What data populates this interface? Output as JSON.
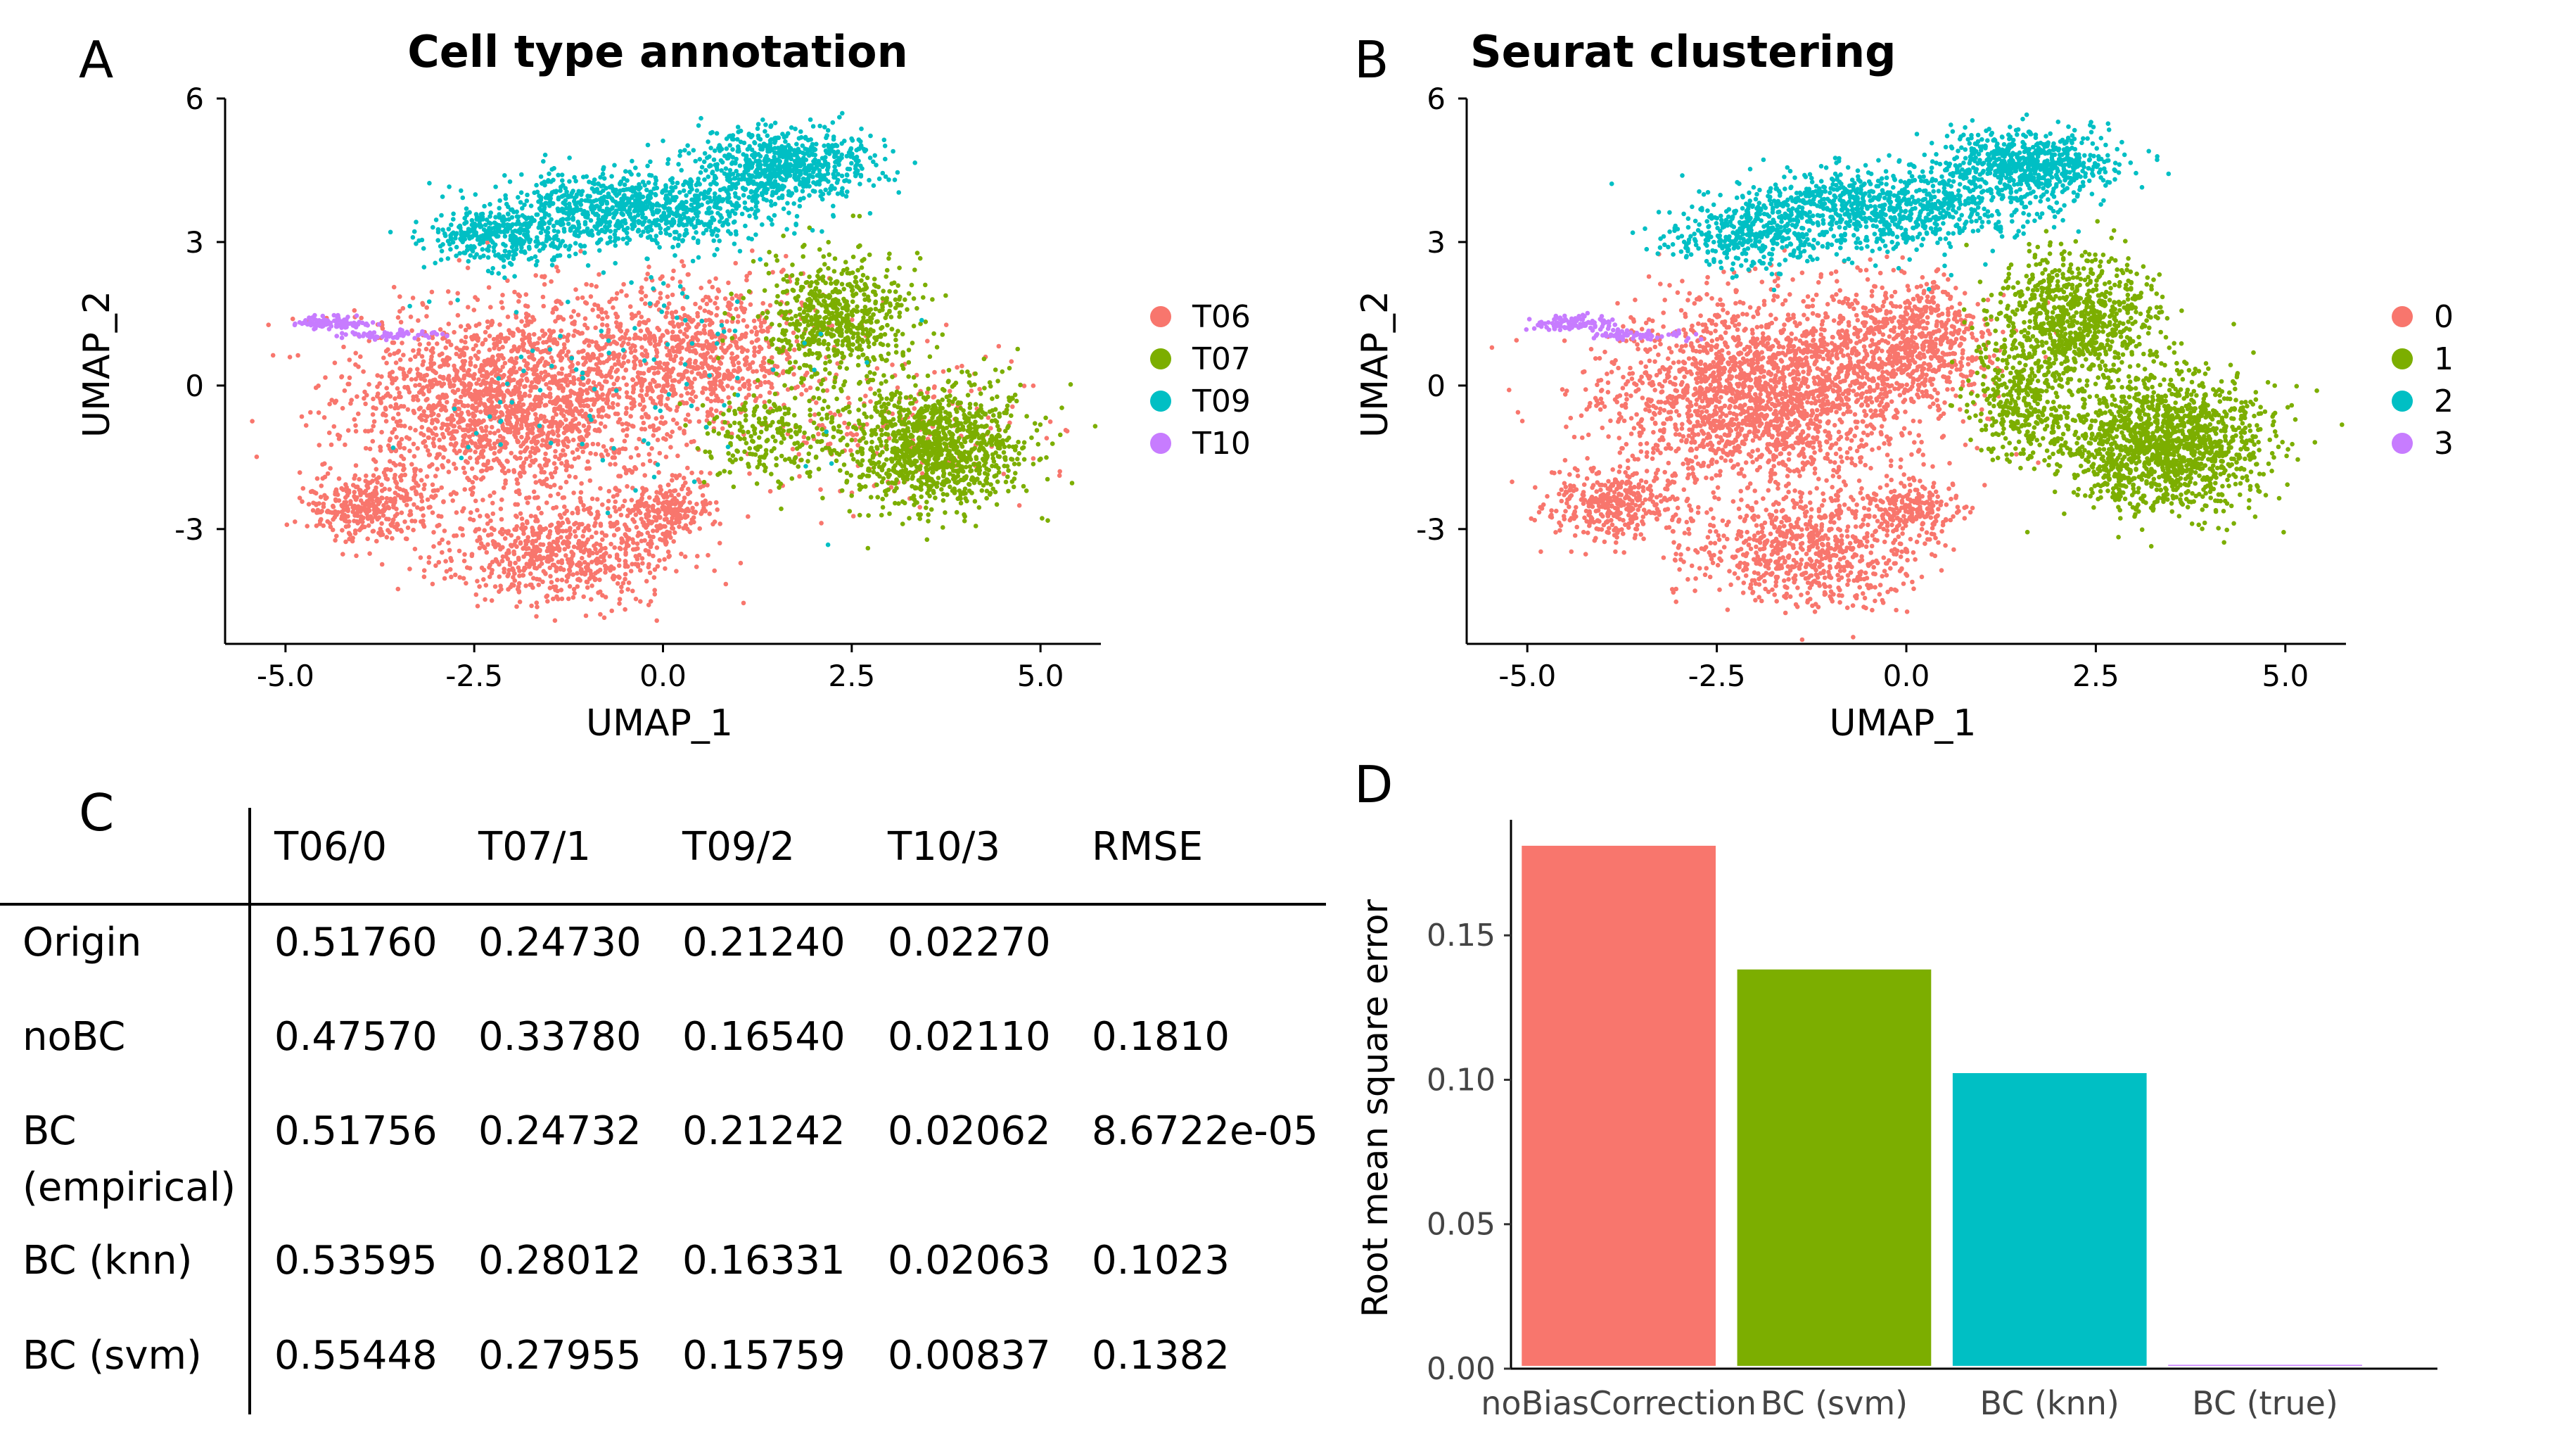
{
  "panel_labels": {
    "a": "A",
    "b": "B",
    "c": "C",
    "d": "D"
  },
  "colors": {
    "T06": "#F8766D",
    "T07": "#7CAE00",
    "T09": "#00BFC4",
    "T10": "#C77CFF",
    "axis": "#000000",
    "tick_label": "#444444",
    "bar_outline": "#ffffff"
  },
  "chart_data": [
    {
      "id": "A",
      "type": "scatter",
      "title": "Cell type annotation",
      "xlabel": "UMAP_1",
      "ylabel": "UMAP_2",
      "xlim": [
        -5.8,
        5.8
      ],
      "ylim": [
        -5.4,
        6.0
      ],
      "xticks": [
        -5.0,
        -2.5,
        0.0,
        2.5,
        5.0
      ],
      "xtick_labels": [
        "-5.0",
        "-2.5",
        "0.0",
        "2.5",
        "5.0"
      ],
      "yticks": [
        -3,
        0,
        3,
        6
      ],
      "ytick_labels": [
        "-3",
        "0",
        "3",
        "6"
      ],
      "legend": [
        "T06",
        "T07",
        "T09",
        "T10"
      ],
      "legend_position": "right",
      "series": [
        {
          "name": "T06",
          "color": "#F8766D",
          "regions": [
            {
              "cx": -2.0,
              "cy": -0.3,
              "sx": 1.5,
              "sy": 1.4,
              "n": 2000
            },
            {
              "cx": -1.3,
              "cy": -3.5,
              "sx": 1.1,
              "sy": 0.75,
              "n": 700
            },
            {
              "cx": -3.9,
              "cy": -2.5,
              "sx": 0.6,
              "sy": 0.5,
              "n": 350
            },
            {
              "cx": 0.5,
              "cy": 0.7,
              "sx": 1.1,
              "sy": 1.0,
              "n": 750
            },
            {
              "cx": 0.0,
              "cy": -2.6,
              "sx": 0.45,
              "sy": 0.4,
              "n": 220
            },
            {
              "cx": 3.0,
              "cy": -0.8,
              "sx": 1.3,
              "sy": 1.1,
              "n": 200
            }
          ]
        },
        {
          "name": "T07",
          "color": "#7CAE00",
          "regions": [
            {
              "cx": 3.6,
              "cy": -1.3,
              "sx": 0.85,
              "sy": 0.9,
              "n": 1100
            },
            {
              "cx": 2.3,
              "cy": 1.4,
              "sx": 0.7,
              "sy": 0.9,
              "n": 650
            },
            {
              "cx": 1.4,
              "cy": -1.0,
              "sx": 0.6,
              "sy": 0.75,
              "n": 220
            }
          ]
        },
        {
          "name": "T09",
          "color": "#00BFC4",
          "regions": [
            {
              "cx": 1.6,
              "cy": 4.6,
              "sx": 0.8,
              "sy": 0.5,
              "n": 700
            },
            {
              "cx": -0.4,
              "cy": 3.7,
              "sx": 1.3,
              "sy": 0.55,
              "n": 900
            },
            {
              "cx": -2.1,
              "cy": 3.1,
              "sx": 0.7,
              "sy": 0.45,
              "n": 330
            },
            {
              "cx": -0.5,
              "cy": 0.4,
              "sx": 2.2,
              "sy": 2.0,
              "n": 100
            }
          ]
        },
        {
          "name": "T10",
          "color": "#C77CFF",
          "regions": [
            {
              "cx": -4.4,
              "cy": 1.3,
              "sx": 0.35,
              "sy": 0.1,
              "n": 110
            },
            {
              "cx": -3.6,
              "cy": 1.05,
              "sx": 0.45,
              "sy": 0.07,
              "n": 60
            }
          ]
        }
      ]
    },
    {
      "id": "B",
      "type": "scatter",
      "title": "Seurat clustering",
      "xlabel": "UMAP_1",
      "ylabel": "UMAP_2",
      "xlim": [
        -5.8,
        5.8
      ],
      "ylim": [
        -5.4,
        6.0
      ],
      "xticks": [
        -5.0,
        -2.5,
        0.0,
        2.5,
        5.0
      ],
      "xtick_labels": [
        "-5.0",
        "-2.5",
        "0.0",
        "2.5",
        "5.0"
      ],
      "yticks": [
        -3,
        0,
        3,
        6
      ],
      "ytick_labels": [
        "-3",
        "0",
        "3",
        "6"
      ],
      "legend": [
        "0",
        "1",
        "2",
        "3"
      ],
      "legend_position": "right",
      "series": [
        {
          "name": "0",
          "color": "#F8766D",
          "regions": [
            {
              "cx": -1.9,
              "cy": -0.2,
              "sx": 1.4,
              "sy": 1.4,
              "n": 2200
            },
            {
              "cx": -1.3,
              "cy": -3.5,
              "sx": 1.1,
              "sy": 0.75,
              "n": 700
            },
            {
              "cx": -3.9,
              "cy": -2.5,
              "sx": 0.6,
              "sy": 0.5,
              "n": 350
            },
            {
              "cx": 0.1,
              "cy": 0.9,
              "sx": 0.7,
              "sy": 0.9,
              "n": 650
            },
            {
              "cx": 0.0,
              "cy": -2.6,
              "sx": 0.45,
              "sy": 0.4,
              "n": 220
            }
          ]
        },
        {
          "name": "1",
          "color": "#7CAE00",
          "regions": [
            {
              "cx": 3.4,
              "cy": -1.2,
              "sx": 0.95,
              "sy": 0.95,
              "n": 1500
            },
            {
              "cx": 2.2,
              "cy": 1.4,
              "sx": 0.75,
              "sy": 0.95,
              "n": 850
            },
            {
              "cx": 1.5,
              "cy": -0.4,
              "sx": 0.5,
              "sy": 0.8,
              "n": 300
            }
          ]
        },
        {
          "name": "2",
          "color": "#00BFC4",
          "regions": [
            {
              "cx": 1.6,
              "cy": 4.6,
              "sx": 0.8,
              "sy": 0.5,
              "n": 700
            },
            {
              "cx": -0.4,
              "cy": 3.7,
              "sx": 1.3,
              "sy": 0.55,
              "n": 900
            },
            {
              "cx": -2.1,
              "cy": 3.1,
              "sx": 0.7,
              "sy": 0.45,
              "n": 330
            }
          ]
        },
        {
          "name": "3",
          "color": "#C77CFF",
          "regions": [
            {
              "cx": -4.4,
              "cy": 1.3,
              "sx": 0.35,
              "sy": 0.1,
              "n": 110
            },
            {
              "cx": -3.6,
              "cy": 1.05,
              "sx": 0.45,
              "sy": 0.07,
              "n": 60
            }
          ]
        }
      ]
    },
    {
      "id": "C",
      "type": "table",
      "columns": [
        "",
        "T06/0",
        "T07/1",
        "T09/2",
        "T10/3",
        "RMSE"
      ],
      "rows": [
        {
          "label": [
            "Origin"
          ],
          "values": [
            "0.51760",
            "0.24730",
            "0.21240",
            "0.02270",
            ""
          ]
        },
        {
          "label": [
            "noBC"
          ],
          "values": [
            "0.47570",
            "0.33780",
            "0.16540",
            "0.02110",
            "0.1810"
          ]
        },
        {
          "label": [
            "BC",
            "(empirical)"
          ],
          "values": [
            "0.51756",
            "0.24732",
            "0.21242",
            "0.02062",
            "8.6722e-05"
          ]
        },
        {
          "label": [
            "BC (knn)"
          ],
          "values": [
            "0.53595",
            "0.28012",
            "0.16331",
            "0.02063",
            "0.1023"
          ]
        },
        {
          "label": [
            "BC (svm)"
          ],
          "values": [
            "0.55448",
            "0.27955",
            "0.15759",
            "0.00837",
            "0.1382"
          ]
        }
      ]
    },
    {
      "id": "D",
      "type": "bar",
      "ylabel": "Root mean square error",
      "xlabel": "",
      "categories": [
        "noBiasCorrection",
        "BC (svm)",
        "BC (knn)",
        "BC (true)"
      ],
      "values": [
        0.181,
        0.1382,
        0.1023,
        8.67e-05
      ],
      "colors": [
        "#F8766D",
        "#7CAE00",
        "#00BFC4",
        "#C77CFF"
      ],
      "ylim": [
        0,
        0.19
      ],
      "yticks": [
        0.0,
        0.05,
        0.1,
        0.15
      ],
      "ytick_labels": [
        "0.00",
        "0.05",
        "0.10",
        "0.15"
      ],
      "grid": false
    }
  ]
}
